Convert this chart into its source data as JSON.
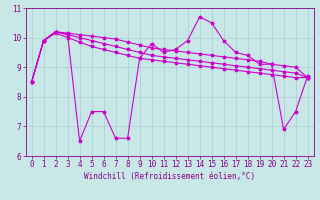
{
  "xlabel": "Windchill (Refroidissement éolien,°C)",
  "background_color": "#c8e8e8",
  "line_color": "#cc00cc",
  "xlim": [
    -0.5,
    23.5
  ],
  "ylim": [
    6,
    11
  ],
  "yticks": [
    6,
    7,
    8,
    9,
    10,
    11
  ],
  "xticks": [
    0,
    1,
    2,
    3,
    4,
    5,
    6,
    7,
    8,
    9,
    10,
    11,
    12,
    13,
    14,
    15,
    16,
    17,
    18,
    19,
    20,
    21,
    22,
    23
  ],
  "s1": [
    8.5,
    9.9,
    10.2,
    10.1,
    6.5,
    7.5,
    7.5,
    6.6,
    6.6,
    9.3,
    9.8,
    9.5,
    9.6,
    9.9,
    10.7,
    10.5,
    9.9,
    9.5,
    9.4,
    9.1,
    9.1,
    6.9,
    7.5,
    8.7
  ],
  "s2": [
    8.5,
    9.9,
    10.2,
    10.15,
    10.1,
    10.05,
    10.0,
    9.95,
    9.85,
    9.75,
    9.65,
    9.6,
    9.55,
    9.5,
    9.45,
    9.4,
    9.35,
    9.3,
    9.25,
    9.2,
    9.1,
    9.05,
    9.0,
    8.65
  ],
  "s3": [
    8.5,
    9.9,
    10.2,
    10.1,
    10.0,
    9.9,
    9.8,
    9.7,
    9.6,
    9.5,
    9.4,
    9.35,
    9.3,
    9.25,
    9.2,
    9.15,
    9.1,
    9.05,
    9.0,
    8.95,
    8.9,
    8.85,
    8.8,
    8.65
  ],
  "s4": [
    8.5,
    9.9,
    10.15,
    10.0,
    9.85,
    9.7,
    9.6,
    9.5,
    9.4,
    9.3,
    9.25,
    9.2,
    9.15,
    9.1,
    9.05,
    9.0,
    8.95,
    8.9,
    8.85,
    8.8,
    8.75,
    8.7,
    8.65,
    8.65
  ],
  "tick_fontsize": 5.5,
  "xlabel_fontsize": 5.5,
  "marker": "*",
  "marker_size": 2.5,
  "line_width": 0.8,
  "font_color": "#880088",
  "grid_color": "#aacccc",
  "axis_line_color": "#880088",
  "tick_color": "#880088"
}
